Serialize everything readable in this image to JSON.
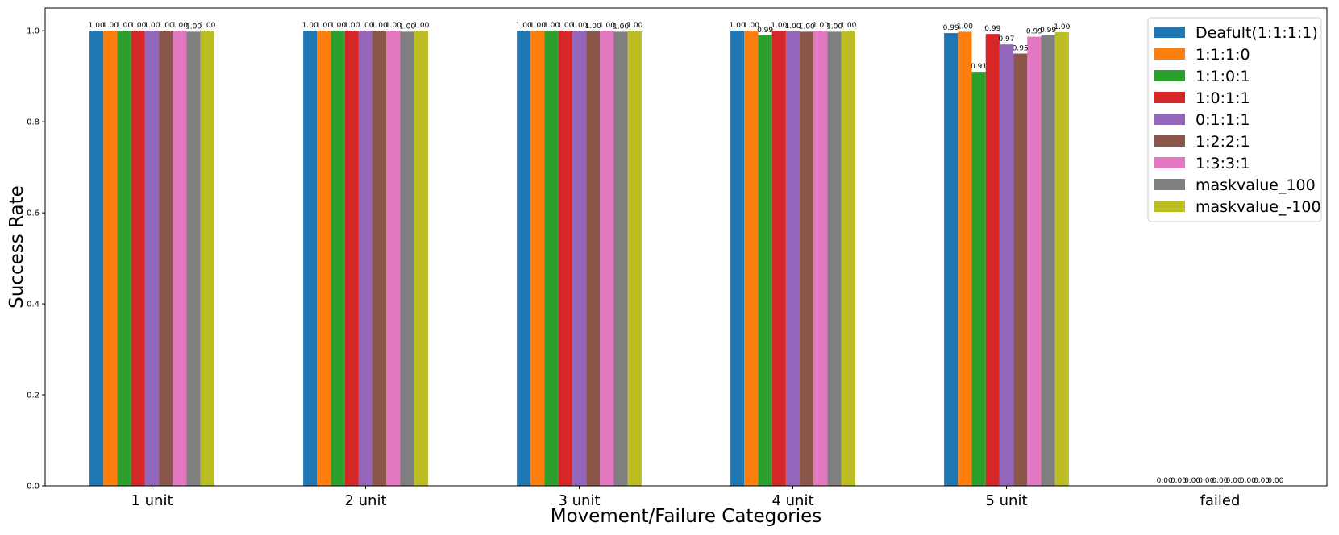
{
  "chart_data": {
    "type": "bar",
    "title": "",
    "xlabel": "Movement/Failure Categories",
    "ylabel": "Success Rate",
    "categories": [
      "1 unit",
      "2 unit",
      "3 unit",
      "4 unit",
      "5 unit",
      "failed"
    ],
    "ylim": [
      0,
      1.05
    ],
    "yticks": [
      "0.0",
      "0.2",
      "0.4",
      "0.6",
      "0.8",
      "1.0"
    ],
    "grid": false,
    "legend_position": "top-right",
    "series": [
      {
        "name": "Deafult(1:1:1:1)",
        "color": "#1f77b4",
        "values": [
          1.0,
          1.0,
          1.0,
          1.0,
          0.995,
          0.0
        ],
        "labels": [
          "1.00",
          "1.00",
          "1.00",
          "1.00",
          "0.99",
          "0.00"
        ]
      },
      {
        "name": "1:1:1:0",
        "color": "#ff7f0e",
        "values": [
          1.0,
          1.0,
          1.0,
          1.0,
          0.998,
          0.0
        ],
        "labels": [
          "1.00",
          "1.00",
          "1.00",
          "1.00",
          "1.00",
          "0.00"
        ]
      },
      {
        "name": "1:1:0:1",
        "color": "#2ca02c",
        "values": [
          1.0,
          1.0,
          1.0,
          0.99,
          0.91,
          0.0
        ],
        "labels": [
          "1.00",
          "1.00",
          "1.00",
          "0.99",
          "0.91",
          "0.00"
        ]
      },
      {
        "name": "1:0:1:1",
        "color": "#d62728",
        "values": [
          1.0,
          1.0,
          1.0,
          1.0,
          0.993,
          0.0
        ],
        "labels": [
          "1.00",
          "1.00",
          "1.00",
          "1.00",
          "0.99",
          "0.00"
        ]
      },
      {
        "name": "0:1:1:1",
        "color": "#9467bd",
        "values": [
          1.0,
          1.0,
          1.0,
          0.999,
          0.97,
          0.0
        ],
        "labels": [
          "1.00",
          "1.00",
          "1.00",
          "1.00",
          "0.97",
          "0.00"
        ]
      },
      {
        "name": "1:2:2:1",
        "color": "#8c564b",
        "values": [
          1.0,
          1.0,
          0.999,
          0.998,
          0.95,
          0.0
        ],
        "labels": [
          "1.00",
          "1.00",
          "1.00",
          "1.00",
          "0.95",
          "0.00"
        ]
      },
      {
        "name": "1:3:3:1",
        "color": "#e377c2",
        "values": [
          1.0,
          1.0,
          1.0,
          1.0,
          0.987,
          0.0
        ],
        "labels": [
          "1.00",
          "1.00",
          "1.00",
          "1.00",
          "0.99",
          "0.00"
        ]
      },
      {
        "name": "maskvalue_100",
        "color": "#7f7f7f",
        "values": [
          0.998,
          0.998,
          0.998,
          0.998,
          0.99,
          0.0
        ],
        "labels": [
          "1.00",
          "1.00",
          "1.00",
          "1.00",
          "0.99",
          "0.00"
        ]
      },
      {
        "name": "maskvalue_-100",
        "color": "#bcbd22",
        "values": [
          1.0,
          1.0,
          1.0,
          1.0,
          0.997,
          0.0
        ],
        "labels": [
          "1.00",
          "1.00",
          "1.00",
          "1.00",
          "1.00",
          "0.00"
        ]
      }
    ]
  }
}
